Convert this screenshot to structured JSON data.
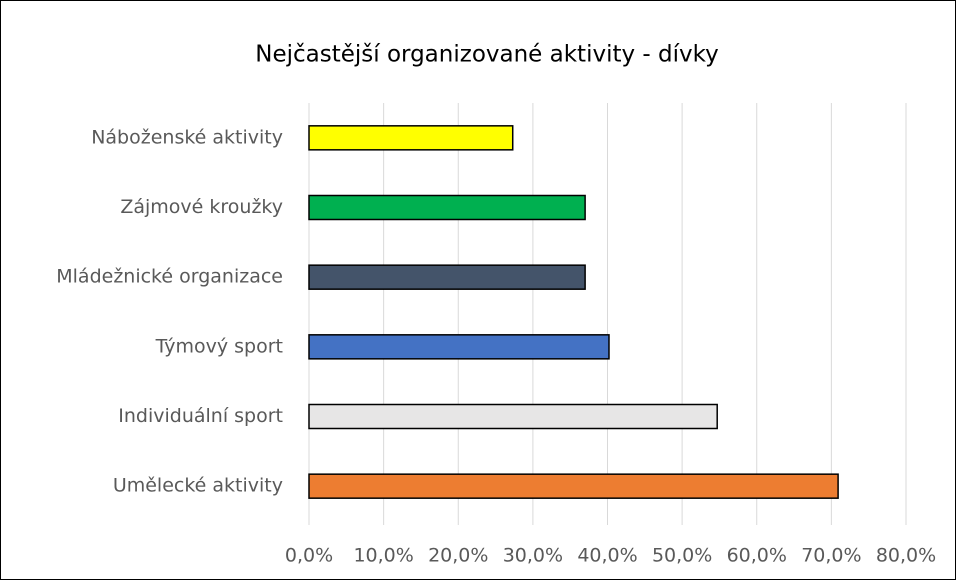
{
  "chart_data": {
    "type": "hbar",
    "title": "Nejčastější organizované aktivity - dívky",
    "categories": [
      "Náboženské aktivity",
      "Zájmové kroužky",
      "Mládežnické organizace",
      "Týmový sport",
      "Individuální sport",
      "Umělecké aktivity"
    ],
    "values": [
      27.3,
      37.0,
      37.0,
      40.2,
      54.7,
      70.9
    ],
    "colors": [
      "#ffff00",
      "#00b050",
      "#44546a",
      "#4472c4",
      "#e7e6e6",
      "#ed7d31"
    ],
    "xlim": [
      0,
      80
    ],
    "xticks": [
      {
        "value": 0,
        "label": "0,0%"
      },
      {
        "value": 10,
        "label": "10,0%"
      },
      {
        "value": 20,
        "label": "20,0%"
      },
      {
        "value": 30,
        "label": "30,0%"
      },
      {
        "value": 40,
        "label": "40,0%"
      },
      {
        "value": 50,
        "label": "50,0%"
      },
      {
        "value": 60,
        "label": "60,0%"
      },
      {
        "value": 70,
        "label": "70,0%"
      },
      {
        "value": 80,
        "label": "80,0%"
      }
    ],
    "grid": true
  }
}
